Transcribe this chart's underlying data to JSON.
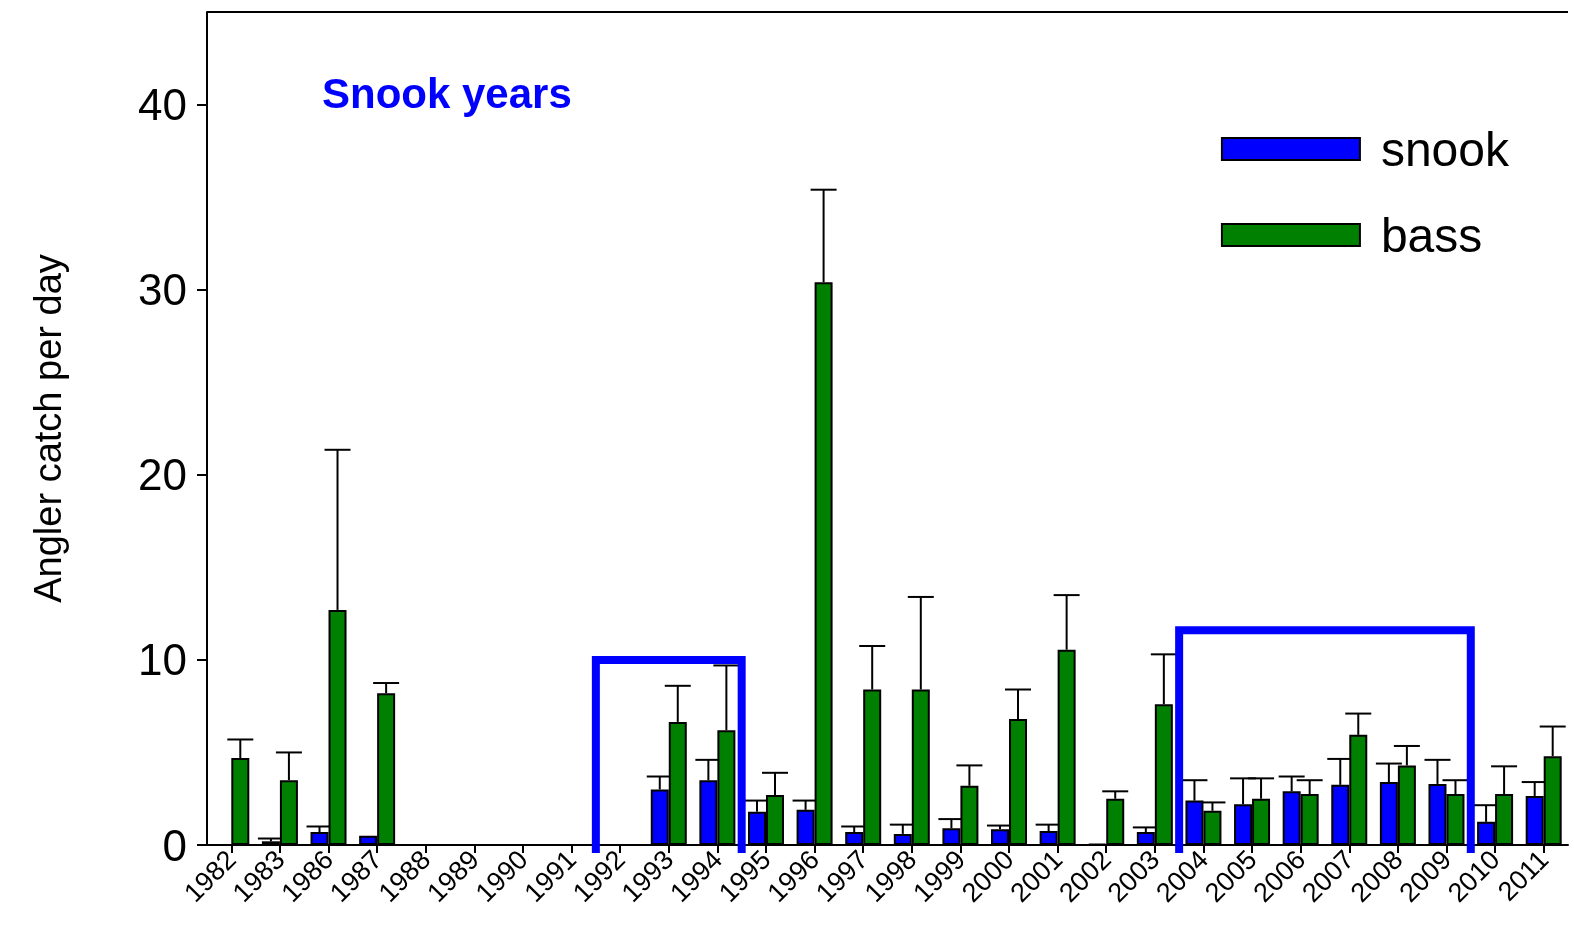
{
  "chart_data": {
    "type": "bar",
    "ylabel": "Angler catch per day",
    "annotations": [
      "Snook years"
    ],
    "categories": [
      "1982",
      "1983",
      "1986",
      "1987",
      "1988",
      "1989",
      "1990",
      "1991",
      "1992",
      "1993",
      "1994",
      "1995",
      "1996",
      "1997",
      "1998",
      "1999",
      "2000",
      "2001",
      "2002",
      "2003",
      "2004",
      "2005",
      "2006",
      "2007",
      "2008",
      "2009",
      "2010",
      "2011"
    ],
    "series": [
      {
        "name": "snook",
        "color": "#0000ff",
        "values": [
          null,
          0.2,
          0.7,
          0.5,
          null,
          null,
          null,
          null,
          null,
          3.0,
          3.5,
          1.8,
          1.9,
          0.7,
          0.6,
          0.9,
          0.85,
          0.75,
          0.05,
          0.7,
          2.4,
          2.2,
          2.9,
          3.25,
          3.4,
          3.3,
          1.25,
          2.65
        ],
        "errors": [
          null,
          [
            0.2,
            0.35
          ],
          [
            0.7,
            1.0
          ],
          null,
          null,
          null,
          null,
          null,
          null,
          [
            3.0,
            3.7
          ],
          [
            3.5,
            4.6
          ],
          [
            1.8,
            2.4
          ],
          [
            1.9,
            2.4
          ],
          [
            0.7,
            1.0
          ],
          [
            0.6,
            1.1
          ],
          [
            0.9,
            1.4
          ],
          [
            0.85,
            1.05
          ],
          [
            0.75,
            1.1
          ],
          null,
          [
            0.7,
            0.95
          ],
          [
            2.4,
            3.5
          ],
          [
            2.2,
            3.6
          ],
          [
            2.9,
            3.7
          ],
          [
            3.25,
            4.65
          ],
          [
            3.4,
            4.4
          ],
          [
            3.3,
            4.6
          ],
          [
            1.25,
            2.15
          ],
          [
            2.65,
            3.4
          ]
        ]
      },
      {
        "name": "bass",
        "color": "#008000",
        "values": [
          4.7,
          3.5,
          12.7,
          8.2,
          null,
          null,
          null,
          null,
          null,
          6.65,
          6.2,
          2.7,
          30.4,
          8.4,
          8.4,
          3.2,
          6.8,
          10.55,
          2.5,
          7.6,
          1.85,
          2.5,
          2.75,
          5.95,
          4.3,
          2.75,
          2.75,
          4.8
        ],
        "errors": [
          [
            4.7,
            5.7
          ],
          [
            3.5,
            5.0
          ],
          [
            12.7,
            21.35
          ],
          [
            8.2,
            8.75
          ],
          null,
          null,
          null,
          null,
          null,
          [
            6.65,
            8.6
          ],
          [
            6.2,
            9.7
          ],
          [
            2.7,
            3.9
          ],
          [
            30.4,
            35.4
          ],
          [
            8.4,
            10.75
          ],
          [
            8.4,
            13.4
          ],
          [
            3.2,
            4.3
          ],
          [
            6.8,
            8.4
          ],
          [
            10.55,
            13.5
          ],
          [
            2.5,
            2.9
          ],
          [
            7.6,
            10.3
          ],
          [
            1.85,
            2.3
          ],
          [
            2.5,
            3.6
          ],
          [
            2.75,
            3.5
          ],
          [
            5.95,
            7.1
          ],
          [
            4.3,
            5.35
          ],
          [
            2.75,
            3.5
          ],
          [
            2.75,
            4.25
          ],
          [
            4.8,
            6.4
          ]
        ]
      }
    ],
    "ylim": [
      0,
      45
    ],
    "yticks": [
      0,
      10,
      20,
      30,
      40
    ],
    "grid": false,
    "legend": "top right"
  }
}
